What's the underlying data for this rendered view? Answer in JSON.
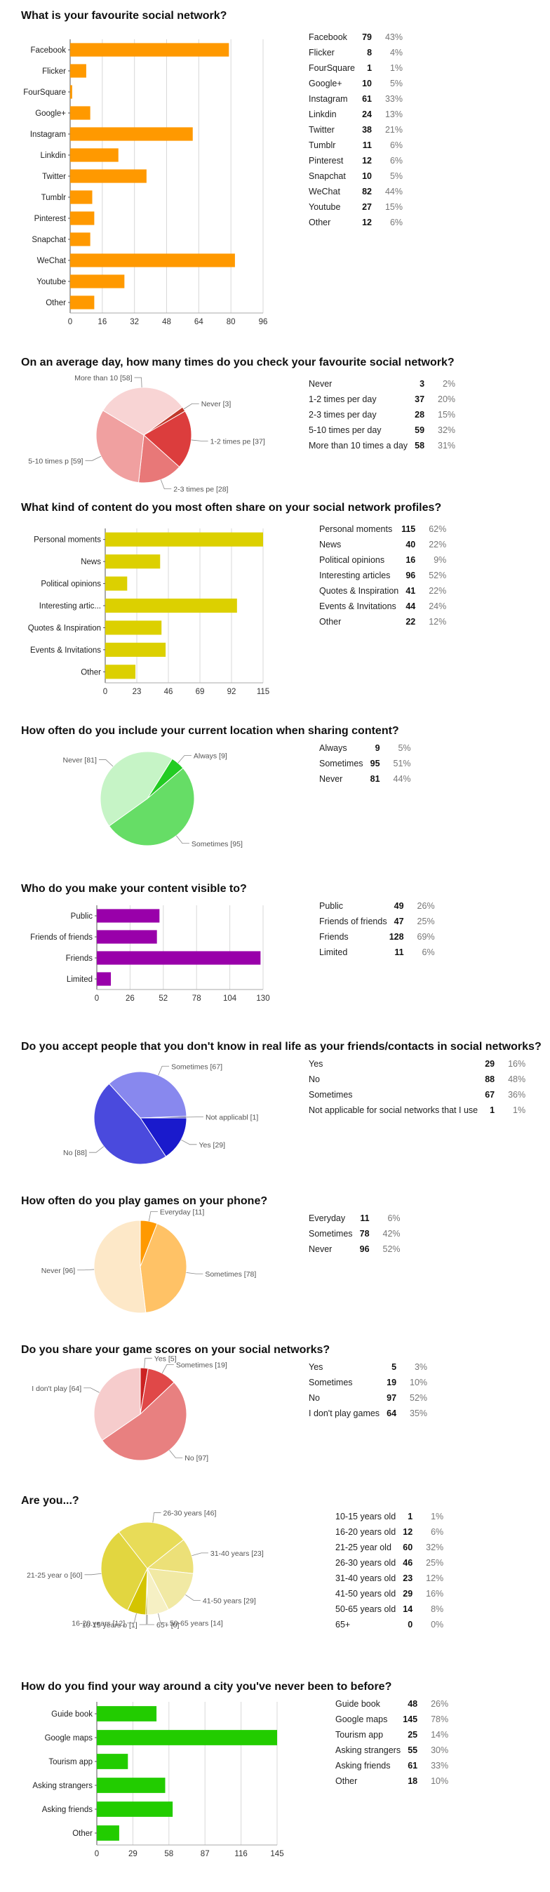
{
  "chart_data": [
    {
      "type": "bar",
      "title": "What is your favourite social network?",
      "categories": [
        "Facebook",
        "Flicker",
        "FourSquare",
        "Google+",
        "Instagram",
        "Linkdin",
        "Twitter",
        "Tumblr",
        "Pinterest",
        "Snapchat",
        "WeChat",
        "Youtube",
        "Other"
      ],
      "values": [
        79,
        8,
        1,
        10,
        61,
        24,
        38,
        11,
        12,
        10,
        82,
        27,
        12
      ],
      "percents": [
        "43%",
        "4%",
        "1%",
        "5%",
        "33%",
        "13%",
        "21%",
        "6%",
        "6%",
        "5%",
        "44%",
        "15%",
        "6%"
      ],
      "xticks": [
        "0",
        "16",
        "32",
        "48",
        "64",
        "80",
        "96"
      ],
      "xlim": [
        0,
        96
      ],
      "color": "#ff9900"
    },
    {
      "type": "pie",
      "title": "On an average day, how many times do you check your favourite social network?",
      "categories": [
        "Never",
        "1-2 times per day",
        "2-3 times per day",
        "5-10 times per day",
        "More than 10 times a day"
      ],
      "values": [
        3,
        37,
        28,
        59,
        58
      ],
      "percents": [
        "2%",
        "20%",
        "15%",
        "32%",
        "31%"
      ],
      "slice_labels": [
        "Never [3]",
        "1-2 times pe [37]",
        "2-3 times pe [28]",
        "5-10 times p [59]",
        "More than 10 [58]"
      ],
      "colors": [
        "#c0392b",
        "#dc3d3d",
        "#e87878",
        "#f0a0a0",
        "#f8d4d4"
      ]
    },
    {
      "type": "bar",
      "title": "What kind of content do you most often share on your social network profiles?",
      "categories": [
        "Personal moments",
        "News",
        "Political opinions",
        "Interesting articles",
        "Quotes & Inspiration",
        "Events & Invitations",
        "Other"
      ],
      "tick_labels": [
        "Personal moments",
        "News",
        "Political opinions",
        "Interesting artic...",
        "Quotes & Inspiration",
        "Events & Invitations",
        "Other"
      ],
      "values": [
        115,
        40,
        16,
        96,
        41,
        44,
        22
      ],
      "percents": [
        "62%",
        "22%",
        "9%",
        "52%",
        "22%",
        "24%",
        "12%"
      ],
      "xticks": [
        "0",
        "23",
        "46",
        "69",
        "92",
        "115"
      ],
      "xlim": [
        0,
        115
      ],
      "color": "#dcd000"
    },
    {
      "type": "pie",
      "title": "How often do you include your current location when sharing content?",
      "categories": [
        "Always",
        "Sometimes",
        "Never"
      ],
      "values": [
        9,
        95,
        81
      ],
      "percents": [
        "5%",
        "51%",
        "44%"
      ],
      "slice_labels": [
        "Always [9]",
        "Sometimes [95]",
        "Never [81]"
      ],
      "colors": [
        "#22cc22",
        "#66dd66",
        "#c6f4c6"
      ]
    },
    {
      "type": "bar",
      "title": "Who do you make your content visible to?",
      "categories": [
        "Public",
        "Friends of friends",
        "Friends",
        "Limited"
      ],
      "values": [
        49,
        47,
        128,
        11
      ],
      "percents": [
        "26%",
        "25%",
        "69%",
        "6%"
      ],
      "xticks": [
        "0",
        "26",
        "52",
        "78",
        "104",
        "130"
      ],
      "xlim": [
        0,
        130
      ],
      "color": "#9900aa"
    },
    {
      "type": "pie",
      "title": "Do you accept people that you don't know in real life as your friends/contacts in social networks?",
      "categories": [
        "Yes",
        "No",
        "Sometimes",
        "Not applicable for social networks that I use"
      ],
      "values": [
        29,
        88,
        67,
        1
      ],
      "percents": [
        "16%",
        "48%",
        "36%",
        "1%"
      ],
      "slice_labels": [
        "Yes [29]",
        "No [88]",
        "Sometimes [67]",
        "Not applicabl [1]"
      ],
      "colors": [
        "#1a1acc",
        "#4a4add",
        "#8888ee",
        "#222288"
      ]
    },
    {
      "type": "pie",
      "title": "How often do you play games on your phone?",
      "categories": [
        "Everyday",
        "Sometimes",
        "Never"
      ],
      "values": [
        11,
        78,
        96
      ],
      "percents": [
        "6%",
        "42%",
        "52%"
      ],
      "slice_labels": [
        "Everyday [11]",
        "Sometimes [78]",
        "Never [96]"
      ],
      "colors": [
        "#ff9900",
        "#ffc266",
        "#fde8c8"
      ]
    },
    {
      "type": "pie",
      "title": "Do you share your game scores on your social networks?",
      "categories": [
        "Yes",
        "Sometimes",
        "No",
        "I don't play games"
      ],
      "values": [
        5,
        19,
        97,
        64
      ],
      "percents": [
        "3%",
        "10%",
        "52%",
        "35%"
      ],
      "slice_labels": [
        "Yes [5]",
        "Sometimes [19]",
        "No [97]",
        "I don't play [64]"
      ],
      "colors": [
        "#cc2222",
        "#e04848",
        "#e88080",
        "#f6cccc"
      ]
    },
    {
      "type": "pie",
      "title": "Are you...?",
      "categories": [
        "10-15 years old",
        "16-20 years old",
        "21-25 year old",
        "26-30 years old",
        "31-40 years old",
        "41-50 years old",
        "50-65 years old",
        "65+"
      ],
      "values": [
        1,
        12,
        60,
        46,
        23,
        29,
        14,
        0
      ],
      "percents": [
        "1%",
        "6%",
        "32%",
        "25%",
        "12%",
        "16%",
        "8%",
        "0%"
      ],
      "slice_labels": [
        "10-15 years o [1]",
        "16-20 years [12]",
        "21-25 year o [60]",
        "26-30 years [46]",
        "31-40 years [23]",
        "41-50 years [29]",
        "50-65 years [14]",
        "65+ [0]"
      ],
      "colors": [
        "#b0a000",
        "#d4c400",
        "#e2d640",
        "#e8dc58",
        "#ece078",
        "#f1e9a4",
        "#f6f0c4",
        "#faf6dc"
      ]
    },
    {
      "type": "bar",
      "title": "How do you find your way around a city you've never been to before?",
      "categories": [
        "Guide book",
        "Google maps",
        "Tourism app",
        "Asking strangers",
        "Asking friends",
        "Other"
      ],
      "values": [
        48,
        145,
        25,
        55,
        61,
        18
      ],
      "percents": [
        "26%",
        "78%",
        "14%",
        "30%",
        "33%",
        "10%"
      ],
      "xticks": [
        "0",
        "29",
        "58",
        "87",
        "116",
        "145"
      ],
      "xlim": [
        0,
        145
      ],
      "color": "#22cc00"
    }
  ]
}
